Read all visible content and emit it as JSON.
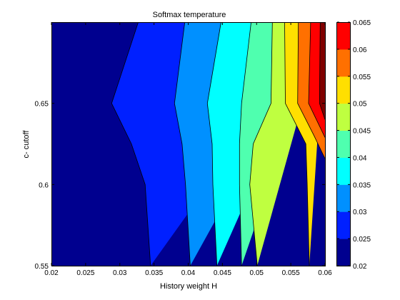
{
  "chart_data": {
    "type": "contour",
    "title": "Softmax temperature",
    "xlabel": "History weight H",
    "ylabel": "c- cutoff",
    "xlim": [
      0.02,
      0.06
    ],
    "ylim": [
      0.55,
      0.7
    ],
    "x_ticks": [
      "0.02",
      "0.025",
      "0.03",
      "0.035",
      "0.04",
      "0.045",
      "0.05",
      "0.055",
      "0.06"
    ],
    "y_ticks": [
      "0.55",
      "0.6",
      "0.65"
    ],
    "colorbar": {
      "min": 0.02,
      "max": 0.065,
      "ticks": [
        "0.02",
        "0.025",
        "0.03",
        "0.035",
        "0.04",
        "0.045",
        "0.05",
        "0.055",
        "0.06",
        "0.065"
      ],
      "colormap": "jet"
    },
    "levels": [
      0.02,
      0.025,
      0.03,
      0.035,
      0.04,
      0.045,
      0.05,
      0.055,
      0.06,
      0.065
    ],
    "level_colors": [
      "#00008f",
      "#0020ff",
      "#0090ff",
      "#00ffff",
      "#4fffaf",
      "#bfff40",
      "#ffdf00",
      "#ff7000",
      "#ff0000",
      "#800000"
    ],
    "contour_boundaries": [
      {
        "level": 0.025,
        "points": [
          [
            0.0327,
            0.7
          ],
          [
            0.0288,
            0.65
          ],
          [
            0.0317,
            0.625
          ],
          [
            0.0337,
            0.6
          ],
          [
            0.0345,
            0.55
          ]
        ]
      },
      {
        "level": 0.03,
        "points": [
          [
            0.0395,
            0.7
          ],
          [
            0.038,
            0.65
          ],
          [
            0.0391,
            0.625
          ],
          [
            0.0396,
            0.6
          ],
          [
            0.0403,
            0.55
          ]
        ]
      },
      {
        "level": 0.035,
        "points": [
          [
            0.0448,
            0.7
          ],
          [
            0.0428,
            0.65
          ],
          [
            0.0435,
            0.625
          ],
          [
            0.0436,
            0.6
          ],
          [
            0.0442,
            0.55
          ]
        ]
      },
      {
        "level": 0.04,
        "points": [
          [
            0.0492,
            0.7
          ],
          [
            0.0478,
            0.65
          ],
          [
            0.0475,
            0.625
          ],
          [
            0.0475,
            0.6
          ],
          [
            0.0478,
            0.55
          ]
        ]
      },
      {
        "level": 0.045,
        "points": [
          [
            0.0523,
            0.7
          ],
          [
            0.0521,
            0.65
          ],
          [
            0.0495,
            0.625
          ],
          [
            0.049,
            0.6
          ],
          [
            0.0501,
            0.55
          ]
        ]
      },
      {
        "level": 0.05,
        "points": [
          [
            0.0541,
            0.7
          ],
          [
            0.0542,
            0.65
          ],
          [
            0.0572,
            0.625
          ],
          [
            0.0574,
            0.6
          ],
          [
            0.0577,
            0.55
          ]
        ]
      },
      {
        "level": 0.055,
        "points": [
          [
            0.0561,
            0.7
          ],
          [
            0.056,
            0.65
          ],
          [
            0.0584,
            0.63
          ],
          [
            0.06,
            0.616
          ]
        ]
      },
      {
        "level": 0.06,
        "points": [
          [
            0.0579,
            0.7
          ],
          [
            0.0576,
            0.65
          ],
          [
            0.06,
            0.629
          ]
        ]
      },
      {
        "level": 0.065,
        "points": [
          [
            0.0593,
            0.7
          ],
          [
            0.0592,
            0.65
          ],
          [
            0.06,
            0.64
          ]
        ]
      }
    ]
  }
}
